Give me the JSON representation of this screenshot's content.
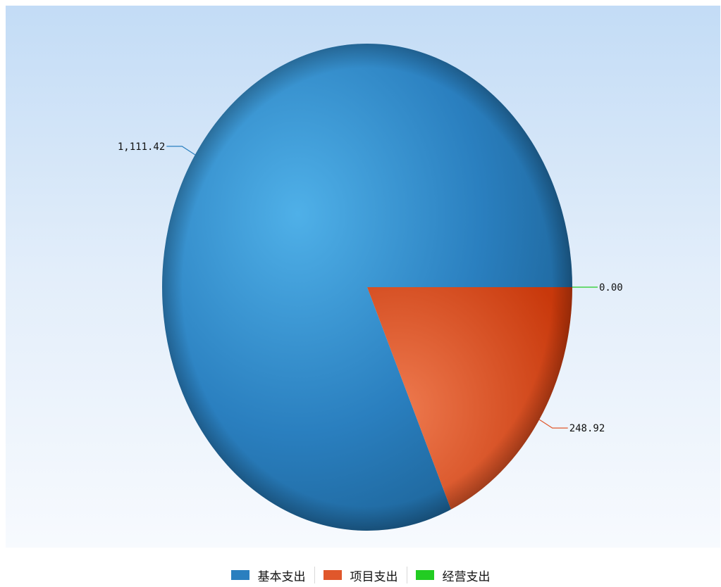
{
  "chart_data": {
    "type": "pie",
    "categories": [
      "基本支出",
      "项目支出",
      "经营支出"
    ],
    "values": [
      1111.42,
      248.92,
      0.0
    ],
    "data_labels": [
      "1,111.42",
      "248.92",
      "0.00"
    ],
    "colors": [
      "#2a7fbf",
      "#e0572b",
      "#22cc22"
    ],
    "legend_position": "bottom"
  }
}
